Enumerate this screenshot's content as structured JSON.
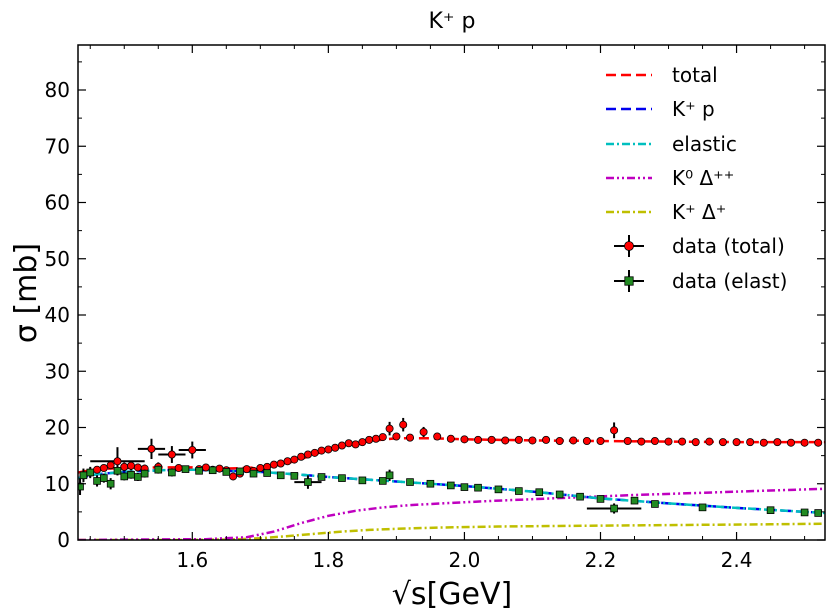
{
  "chart_data": {
    "type": "line",
    "title": "K⁺ p",
    "xlabel": "√s[GeV]",
    "ylabel": "σ [mb]",
    "xlim": [
      1.432,
      2.53
    ],
    "ylim": [
      0,
      88
    ],
    "xticks": [
      1.6,
      1.8,
      2.0,
      2.2,
      2.4
    ],
    "xtick_labels": [
      "1.6",
      "1.8",
      "2.0",
      "2.2",
      "2.4"
    ],
    "yticks": [
      0,
      10,
      20,
      30,
      40,
      50,
      60,
      70,
      80
    ],
    "ytick_labels": [
      "0",
      "10",
      "20",
      "30",
      "40",
      "50",
      "60",
      "70",
      "80"
    ],
    "legend_position": "top-right",
    "series": [
      {
        "name": "total",
        "style": "dashed",
        "color": "#ff0000",
        "x": [
          1.432,
          1.46,
          1.5,
          1.55,
          1.6,
          1.65,
          1.7,
          1.73,
          1.75,
          1.78,
          1.8,
          1.83,
          1.86,
          1.9,
          1.95,
          2.0,
          2.1,
          2.2,
          2.3,
          2.4,
          2.53
        ],
        "y": [
          12.0,
          12.6,
          12.8,
          12.9,
          12.9,
          12.7,
          12.9,
          13.4,
          14.0,
          15.2,
          16.2,
          17.0,
          17.6,
          18.1,
          18.1,
          17.9,
          17.7,
          17.6,
          17.5,
          17.4,
          17.4
        ]
      },
      {
        "name": "K⁺ p",
        "style": "dashed",
        "color": "#0000ee",
        "x": [
          1.432,
          1.46,
          1.5,
          1.55,
          1.6,
          1.65,
          1.7,
          1.75,
          1.8,
          1.85,
          1.9,
          2.0,
          2.1,
          2.2,
          2.3,
          2.4,
          2.53
        ],
        "y": [
          11.0,
          11.7,
          12.1,
          12.4,
          12.5,
          12.3,
          12.1,
          11.7,
          11.2,
          10.8,
          10.4,
          9.6,
          8.6,
          7.4,
          6.5,
          5.7,
          4.8
        ]
      },
      {
        "name": "elastic",
        "style": "dashdot",
        "color": "#00bfbf",
        "x": [
          1.432,
          1.46,
          1.5,
          1.55,
          1.6,
          1.65,
          1.7,
          1.75,
          1.8,
          1.85,
          1.9,
          2.0,
          2.1,
          2.2,
          2.3,
          2.4,
          2.53
        ],
        "y": [
          11.0,
          11.7,
          12.1,
          12.4,
          12.5,
          12.3,
          12.1,
          11.7,
          11.2,
          10.8,
          10.4,
          9.6,
          8.6,
          7.4,
          6.5,
          5.7,
          4.8
        ]
      },
      {
        "name": "K⁰ Δ⁺⁺",
        "style": "dashdotdot",
        "color": "#bf00bf",
        "x": [
          1.432,
          1.55,
          1.62,
          1.68,
          1.72,
          1.76,
          1.8,
          1.84,
          1.88,
          1.92,
          1.98,
          2.05,
          2.15,
          2.25,
          2.35,
          2.45,
          2.53
        ],
        "y": [
          0.0,
          0.1,
          0.15,
          0.5,
          1.5,
          3.0,
          4.3,
          5.2,
          5.8,
          6.2,
          6.6,
          7.0,
          7.5,
          8.0,
          8.4,
          8.8,
          9.1
        ]
      },
      {
        "name": "K⁺ Δ⁺",
        "style": "dashdot",
        "color": "#bfbf00",
        "x": [
          1.432,
          1.6,
          1.66,
          1.7,
          1.74,
          1.78,
          1.82,
          1.86,
          1.9,
          1.96,
          2.05,
          2.15,
          2.25,
          2.35,
          2.45,
          2.53
        ],
        "y": [
          0.0,
          0.0,
          0.1,
          0.3,
          0.7,
          1.1,
          1.5,
          1.8,
          2.0,
          2.2,
          2.4,
          2.5,
          2.6,
          2.7,
          2.8,
          2.9
        ]
      }
    ],
    "data_series": [
      {
        "name": "data (total)",
        "marker": "circle",
        "color": "#ff0000",
        "points": [
          [
            1.44,
            11.5,
            0.7,
            0
          ],
          [
            1.45,
            12.0,
            0.6,
            0
          ],
          [
            1.46,
            12.5,
            0.6,
            0
          ],
          [
            1.47,
            12.8,
            0.6,
            0
          ],
          [
            1.48,
            13.3,
            0.7,
            0
          ],
          [
            1.49,
            14.0,
            2.5,
            0.04
          ],
          [
            1.5,
            13.0,
            0.8,
            0
          ],
          [
            1.51,
            13.2,
            0.8,
            0
          ],
          [
            1.52,
            12.9,
            0.7,
            0
          ],
          [
            1.53,
            12.7,
            0.7,
            0
          ],
          [
            1.54,
            16.2,
            1.8,
            0.02
          ],
          [
            1.55,
            13.0,
            0.8,
            0
          ],
          [
            1.57,
            15.2,
            1.5,
            0.02
          ],
          [
            1.58,
            12.8,
            0.6,
            0
          ],
          [
            1.6,
            16.0,
            1.5,
            0.02
          ],
          [
            1.61,
            12.6,
            0.6,
            0
          ],
          [
            1.62,
            12.9,
            0.6,
            0
          ],
          [
            1.63,
            12.5,
            0.6,
            0
          ],
          [
            1.64,
            12.7,
            0.5,
            0
          ],
          [
            1.65,
            12.4,
            0.5,
            0
          ],
          [
            1.66,
            11.3,
            0.6,
            0
          ],
          [
            1.67,
            11.8,
            0.5,
            0
          ],
          [
            1.68,
            12.6,
            0.5,
            0
          ],
          [
            1.69,
            12.3,
            0.5,
            0
          ],
          [
            1.7,
            12.8,
            0.5,
            0
          ],
          [
            1.71,
            13.0,
            0.5,
            0
          ],
          [
            1.72,
            13.4,
            0.5,
            0
          ],
          [
            1.73,
            13.6,
            0.5,
            0
          ],
          [
            1.74,
            14.0,
            0.5,
            0
          ],
          [
            1.75,
            14.3,
            0.5,
            0
          ],
          [
            1.76,
            14.8,
            0.5,
            0
          ],
          [
            1.77,
            15.2,
            0.5,
            0
          ],
          [
            1.78,
            15.5,
            0.5,
            0
          ],
          [
            1.79,
            15.9,
            0.5,
            0
          ],
          [
            1.8,
            16.1,
            0.5,
            0
          ],
          [
            1.81,
            16.4,
            0.5,
            0
          ],
          [
            1.82,
            16.8,
            0.5,
            0
          ],
          [
            1.83,
            17.2,
            0.5,
            0
          ],
          [
            1.84,
            17.0,
            0.5,
            0
          ],
          [
            1.85,
            17.4,
            0.5,
            0
          ],
          [
            1.86,
            17.8,
            0.6,
            0
          ],
          [
            1.87,
            18.0,
            0.6,
            0
          ],
          [
            1.88,
            18.3,
            0.6,
            0
          ],
          [
            1.89,
            19.8,
            1.2,
            0
          ],
          [
            1.9,
            18.4,
            0.6,
            0
          ],
          [
            1.91,
            20.5,
            1.2,
            0
          ],
          [
            1.92,
            18.2,
            0.6,
            0
          ],
          [
            1.94,
            19.2,
            0.9,
            0
          ],
          [
            1.96,
            18.4,
            0.6,
            0
          ],
          [
            1.98,
            18.0,
            0.5,
            0
          ],
          [
            2.0,
            17.9,
            0.5,
            0
          ],
          [
            2.02,
            17.8,
            0.5,
            0
          ],
          [
            2.04,
            17.8,
            0.4,
            0
          ],
          [
            2.06,
            17.7,
            0.4,
            0
          ],
          [
            2.08,
            17.8,
            0.4,
            0
          ],
          [
            2.1,
            17.7,
            0.4,
            0
          ],
          [
            2.12,
            17.8,
            0.4,
            0
          ],
          [
            2.14,
            17.6,
            0.4,
            0
          ],
          [
            2.16,
            17.7,
            0.4,
            0
          ],
          [
            2.18,
            17.6,
            0.4,
            0
          ],
          [
            2.2,
            17.6,
            0.4,
            0
          ],
          [
            2.22,
            19.5,
            1.4,
            0
          ],
          [
            2.24,
            17.6,
            0.4,
            0
          ],
          [
            2.26,
            17.5,
            0.4,
            0
          ],
          [
            2.28,
            17.6,
            0.4,
            0
          ],
          [
            2.3,
            17.5,
            0.4,
            0
          ],
          [
            2.32,
            17.5,
            0.4,
            0
          ],
          [
            2.34,
            17.4,
            0.4,
            0
          ],
          [
            2.36,
            17.5,
            0.4,
            0
          ],
          [
            2.38,
            17.4,
            0.4,
            0
          ],
          [
            2.4,
            17.4,
            0.4,
            0
          ],
          [
            2.42,
            17.4,
            0.4,
            0
          ],
          [
            2.44,
            17.3,
            0.4,
            0
          ],
          [
            2.46,
            17.4,
            0.4,
            0
          ],
          [
            2.48,
            17.3,
            0.4,
            0
          ],
          [
            2.5,
            17.3,
            0.4,
            0
          ],
          [
            2.52,
            17.3,
            0.4,
            0
          ]
        ]
      },
      {
        "name": "data (elast)",
        "marker": "square",
        "color": "#228b22",
        "points": [
          [
            1.435,
            9.5,
            1.5,
            0
          ],
          [
            1.44,
            11.5,
            1.2,
            0
          ],
          [
            1.45,
            12.0,
            1.0,
            0
          ],
          [
            1.46,
            10.5,
            1.0,
            0
          ],
          [
            1.47,
            11.0,
            0.8,
            0
          ],
          [
            1.48,
            10.0,
            1.0,
            0
          ],
          [
            1.49,
            12.3,
            0.8,
            0
          ],
          [
            1.5,
            11.3,
            0.7,
            0
          ],
          [
            1.51,
            11.6,
            0.7,
            0
          ],
          [
            1.52,
            11.2,
            0.7,
            0
          ],
          [
            1.53,
            11.8,
            0.7,
            0
          ],
          [
            1.55,
            12.5,
            0.7,
            0
          ],
          [
            1.57,
            12.0,
            0.7,
            0
          ],
          [
            1.59,
            12.6,
            0.6,
            0
          ],
          [
            1.61,
            12.3,
            0.6,
            0
          ],
          [
            1.63,
            12.4,
            0.6,
            0
          ],
          [
            1.65,
            12.1,
            0.6,
            0
          ],
          [
            1.67,
            12.2,
            0.6,
            0
          ],
          [
            1.69,
            11.8,
            0.6,
            0
          ],
          [
            1.71,
            11.9,
            0.6,
            0
          ],
          [
            1.73,
            11.5,
            0.6,
            0
          ],
          [
            1.75,
            11.4,
            0.6,
            0
          ],
          [
            1.77,
            10.3,
            1.2,
            0.02
          ],
          [
            1.79,
            11.2,
            0.5,
            0
          ],
          [
            1.82,
            11.0,
            0.5,
            0
          ],
          [
            1.85,
            10.6,
            0.5,
            0
          ],
          [
            1.88,
            10.5,
            0.5,
            0
          ],
          [
            1.89,
            11.5,
            1.0,
            0
          ],
          [
            1.92,
            10.3,
            0.5,
            0
          ],
          [
            1.95,
            10.0,
            0.5,
            0
          ],
          [
            1.98,
            9.7,
            0.5,
            0
          ],
          [
            2.0,
            9.4,
            0.5,
            0
          ],
          [
            2.02,
            9.3,
            0.5,
            0
          ],
          [
            2.05,
            9.0,
            0.4,
            0
          ],
          [
            2.08,
            8.7,
            0.4,
            0
          ],
          [
            2.11,
            8.5,
            0.4,
            0
          ],
          [
            2.14,
            8.1,
            0.4,
            0
          ],
          [
            2.17,
            7.7,
            0.4,
            0
          ],
          [
            2.2,
            7.3,
            0.4,
            0
          ],
          [
            2.22,
            5.6,
            0.9,
            0.04
          ],
          [
            2.25,
            7.0,
            0.5,
            0
          ],
          [
            2.28,
            6.4,
            0.4,
            0
          ],
          [
            2.35,
            5.8,
            0.4,
            0
          ],
          [
            2.45,
            5.3,
            0.4,
            0
          ],
          [
            2.5,
            4.9,
            0.4,
            0
          ],
          [
            2.52,
            4.8,
            0.4,
            0
          ]
        ]
      }
    ]
  }
}
